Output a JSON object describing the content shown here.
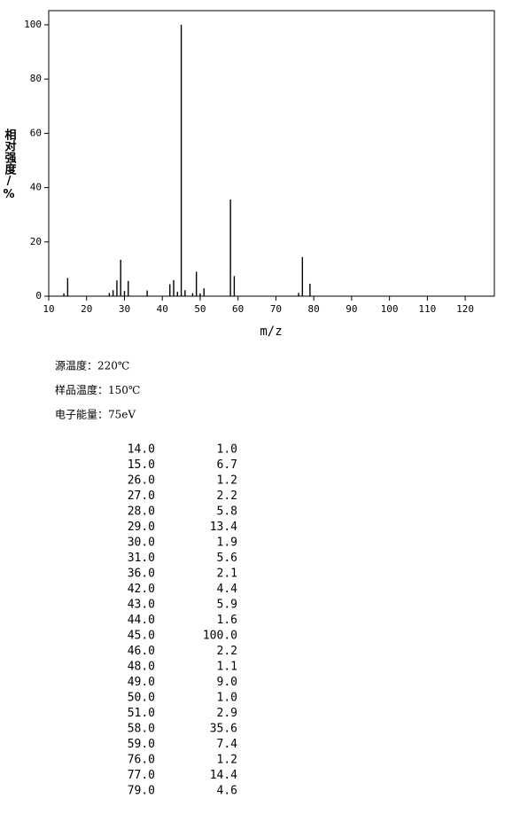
{
  "chart_data": {
    "type": "stem",
    "x_label": "m/z",
    "y_label": "相对强度/%",
    "x": [
      14,
      15,
      26,
      27,
      28,
      29,
      30,
      31,
      36,
      42,
      43,
      44,
      45,
      46,
      48,
      49,
      50,
      51,
      58,
      59,
      76,
      77,
      79
    ],
    "values": [
      1.0,
      6.7,
      1.2,
      2.2,
      5.8,
      13.4,
      1.9,
      5.6,
      2.1,
      4.4,
      5.9,
      1.6,
      100.0,
      2.2,
      1.1,
      9.0,
      1.0,
      2.9,
      35.6,
      7.4,
      1.2,
      14.4,
      4.6
    ],
    "color": "#000000",
    "xlim": [
      10,
      127.7
    ],
    "xticks": [
      10,
      20,
      30,
      40,
      50,
      60,
      70,
      80,
      90,
      100,
      110,
      120
    ],
    "ylim": [
      0,
      105.2
    ],
    "yticks": [
      0,
      20,
      40,
      60,
      80,
      100
    ]
  },
  "conditions": [
    "源温度：220℃",
    "样品温度：150℃",
    "电子能量：75eV"
  ],
  "table": {
    "rows": [
      [
        "14.0",
        "1.0"
      ],
      [
        "15.0",
        "6.7"
      ],
      [
        "26.0",
        "1.2"
      ],
      [
        "27.0",
        "2.2"
      ],
      [
        "28.0",
        "5.8"
      ],
      [
        "29.0",
        "13.4"
      ],
      [
        "30.0",
        "1.9"
      ],
      [
        "31.0",
        "5.6"
      ],
      [
        "36.0",
        "2.1"
      ],
      [
        "42.0",
        "4.4"
      ],
      [
        "43.0",
        "5.9"
      ],
      [
        "44.0",
        "1.6"
      ],
      [
        "45.0",
        "100.0"
      ],
      [
        "46.0",
        "2.2"
      ],
      [
        "48.0",
        "1.1"
      ],
      [
        "49.0",
        "9.0"
      ],
      [
        "50.0",
        "1.0"
      ],
      [
        "51.0",
        "2.9"
      ],
      [
        "58.0",
        "35.6"
      ],
      [
        "59.0",
        "7.4"
      ],
      [
        "76.0",
        "1.2"
      ],
      [
        "77.0",
        "14.4"
      ],
      [
        "79.0",
        "4.6"
      ]
    ]
  }
}
